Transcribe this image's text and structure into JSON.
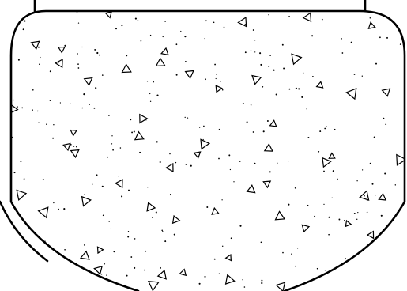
{
  "drawing": {
    "kind": "concrete section hatch",
    "line_color": "#000000",
    "background_color": "#ffffff",
    "hatch_pattern": "triangles-and-dots"
  }
}
